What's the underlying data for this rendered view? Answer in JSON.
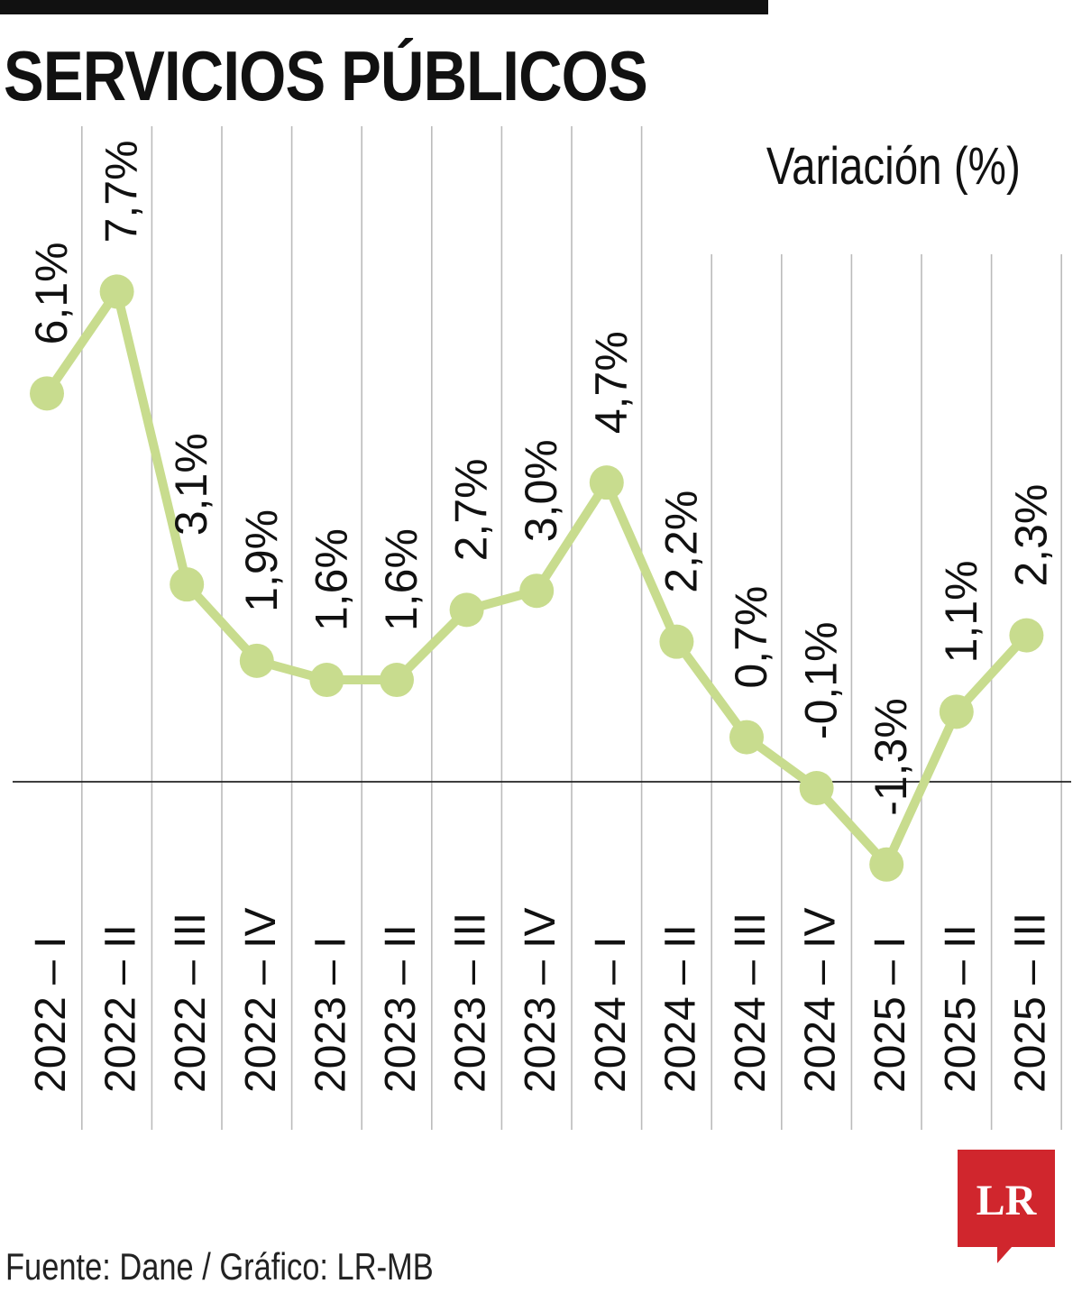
{
  "title": "SERVICIOS PÚBLICOS",
  "subtitle": "Variación (%)",
  "source": "Fuente: Dane / Gráfico: LR-MB",
  "logo": {
    "text": "LR",
    "color": "#d0262d"
  },
  "colors": {
    "line": "#c8dc8e",
    "text": "#111111",
    "grid": "#bbbbbb",
    "axis": "#222222"
  },
  "chart_data": {
    "type": "line",
    "categories": [
      "2022 – I",
      "2022 – II",
      "2022 – III",
      "2022 – IV",
      "2023 – I",
      "2023 – II",
      "2023 – III",
      "2023 – IV",
      "2024 – I",
      "2024 – II",
      "2024 – III",
      "2024 – IV",
      "2025 – I",
      "2025 – II",
      "2025 – III"
    ],
    "series": [
      {
        "values": [
          6.1,
          7.7,
          3.1,
          1.9,
          1.6,
          1.6,
          2.7,
          3.0,
          4.7,
          2.2,
          0.7,
          -0.1,
          -1.3,
          1.1,
          2.3
        ]
      }
    ],
    "data_labels": [
      "6,1%",
      "7,7%",
      "3,1%",
      "1,9%",
      "1,6%",
      "1,6%",
      "2,7%",
      "3,0%",
      "4,7%",
      "2,2%",
      "0,7%",
      "-0,1%",
      "-1,3%",
      "1,1%",
      "2,3%"
    ],
    "ylabel": "Variación (%)",
    "zero_line": true,
    "grid": "vertical"
  }
}
